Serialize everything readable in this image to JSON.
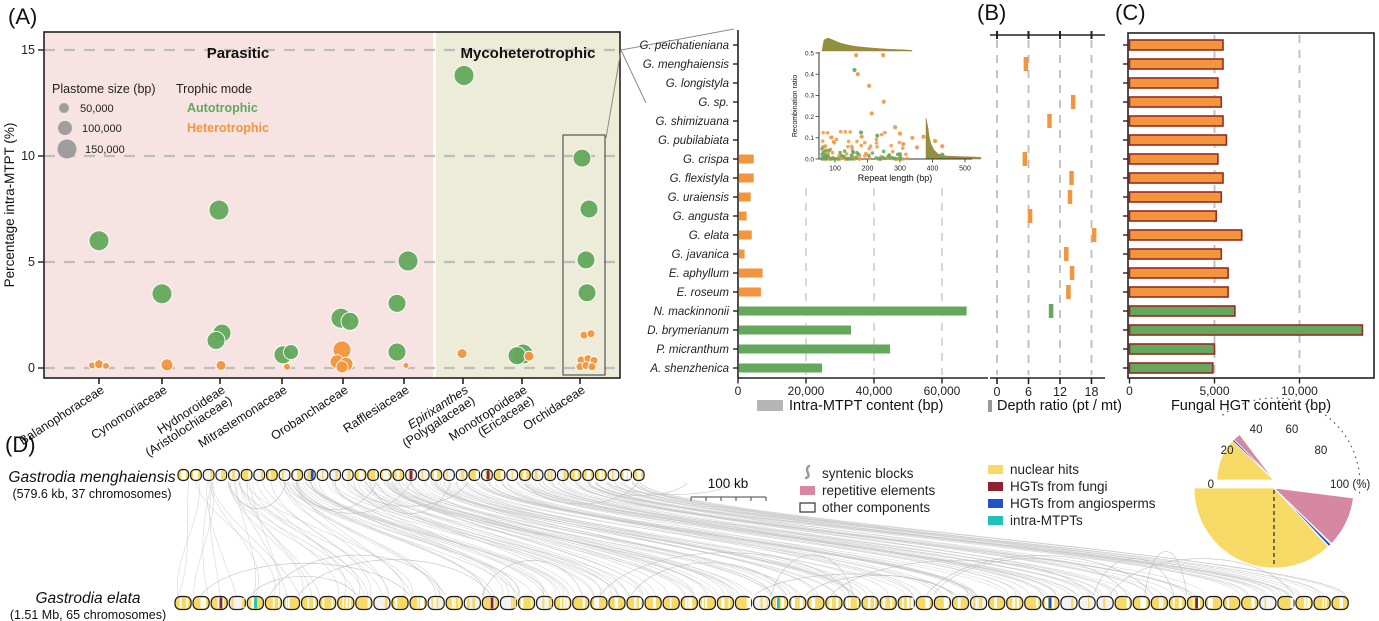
{
  "figure": {
    "panel_labels": {
      "a": "(A)",
      "b": "(B)",
      "c": "(C)",
      "d": "(D)"
    }
  },
  "colors": {
    "autotrophic": "#63a85c",
    "heterotrophic": "#f2953c",
    "parasitic_bg": "#f7e4e2",
    "myco_bg": "#edecd9",
    "grid_gray": "#bdbdbd",
    "bar_green": "#57a14f",
    "bar_orange": "#f2953c",
    "hgt_border": "#9a2a22",
    "legend_gray": "#b5b5b5",
    "pie_yellow": "#f7da66",
    "pie_pink": "#d688a3",
    "pie_blue": "#2253cc",
    "pie_teal": "#1fc3ba",
    "pie_darkred": "#8c2130",
    "chrom_yellow": "#f7da66",
    "synteny_gray": "#c8c8c8",
    "density_olive": "#8e9140"
  },
  "species": [
    "G. peichatieniana",
    "G. menghaiensis",
    "G. longistyla",
    "G. sp.",
    "G. shimizuana",
    "G. pubilabiata",
    "G. crispa",
    "G. flexistyla",
    "G. uraiensis",
    "G. angusta",
    "G. elata",
    "G. javanica",
    "E. aphyllum",
    "E. roseum",
    "N. mackinnonii",
    "D. brymerianum",
    "P. micranthum",
    "A. shenzhenica"
  ],
  "species_trophic": [
    "h",
    "h",
    "h",
    "h",
    "h",
    "h",
    "h",
    "h",
    "h",
    "h",
    "h",
    "h",
    "h",
    "h",
    "a",
    "a",
    "a",
    "a"
  ],
  "chart_data": [
    {
      "id": "intra_mtpt_percentage_scatter",
      "type": "scatter",
      "ylabel": "Percentage intra-MTPT (%)",
      "yticks": [
        0,
        5,
        10,
        15
      ],
      "ylim": [
        0,
        16
      ],
      "grid": true,
      "regions": [
        {
          "label": "Parasitic"
        },
        {
          "label": "Mycoheterotrophic"
        }
      ],
      "legend": {
        "size_title": "Plastome size (bp)",
        "sizes": [
          "50,000",
          "100,000",
          "150,000"
        ],
        "trophic_title": "Trophic mode",
        "trophic": [
          "Autotrophic",
          "Heterotrophic"
        ]
      },
      "categories": [
        {
          "x": 99,
          "lines": [
            "Balanophoraceae"
          ]
        },
        {
          "x": 162,
          "lines": [
            "Cynomoriaceae"
          ]
        },
        {
          "x": 220,
          "lines": [
            "Hydnoroideae",
            "(Aristolochiaceae)"
          ]
        },
        {
          "x": 282,
          "lines": [
            "Mitrastemonaceae"
          ]
        },
        {
          "x": 343,
          "lines": [
            "Orobanchaceae"
          ]
        },
        {
          "x": 404,
          "lines": [
            "Rafflesiaceae"
          ]
        },
        {
          "x": 463,
          "lines": [
            "Epirixanthes",
            "(Polygalaceae)"
          ],
          "italic_first": true
        },
        {
          "x": 522,
          "lines": [
            "Monotropoideae",
            "(Ericaceae)"
          ]
        },
        {
          "x": 580,
          "lines": [
            "Orchidaceae"
          ]
        }
      ],
      "points": [
        {
          "x": 99,
          "pct": 6.0,
          "t": "a",
          "r": 10
        },
        {
          "x": 92,
          "pct": 0.12,
          "t": "h",
          "r": 3.5
        },
        {
          "x": 99,
          "pct": 0.18,
          "t": "h",
          "r": 4.5
        },
        {
          "x": 106,
          "pct": 0.1,
          "t": "h",
          "r": 3.5
        },
        {
          "x": 162,
          "pct": 3.5,
          "t": "a",
          "r": 10
        },
        {
          "x": 167,
          "pct": 0.15,
          "t": "h",
          "r": 6
        },
        {
          "x": 219,
          "pct": 7.45,
          "t": "a",
          "r": 10
        },
        {
          "x": 222,
          "pct": 1.65,
          "t": "a",
          "r": 9
        },
        {
          "x": 216,
          "pct": 1.3,
          "t": "a",
          "r": 9
        },
        {
          "x": 221,
          "pct": 0.12,
          "t": "h",
          "r": 5
        },
        {
          "x": 283,
          "pct": 0.62,
          "t": "a",
          "r": 9
        },
        {
          "x": 291,
          "pct": 0.75,
          "t": "a",
          "r": 7.5
        },
        {
          "x": 287,
          "pct": 0.06,
          "t": "h",
          "r": 3.5
        },
        {
          "x": 341,
          "pct": 2.35,
          "t": "a",
          "r": 10
        },
        {
          "x": 350,
          "pct": 2.2,
          "t": "a",
          "r": 9
        },
        {
          "x": 342,
          "pct": 0.85,
          "t": "h",
          "r": 9
        },
        {
          "x": 337,
          "pct": 0.3,
          "t": "h",
          "r": 7
        },
        {
          "x": 346,
          "pct": 0.18,
          "t": "h",
          "r": 7
        },
        {
          "x": 342,
          "pct": 0.05,
          "t": "h",
          "r": 6
        },
        {
          "x": 408,
          "pct": 5.05,
          "t": "a",
          "r": 10
        },
        {
          "x": 397,
          "pct": 3.05,
          "t": "a",
          "r": 9
        },
        {
          "x": 397,
          "pct": 0.75,
          "t": "a",
          "r": 9
        },
        {
          "x": 406,
          "pct": 0.12,
          "t": "h",
          "r": 3
        },
        {
          "x": 464,
          "pct": 13.8,
          "t": "a",
          "r": 10
        },
        {
          "x": 462,
          "pct": 0.68,
          "t": "h",
          "r": 5
        },
        {
          "x": 523,
          "pct": 0.66,
          "t": "a",
          "r": 10
        },
        {
          "x": 517,
          "pct": 0.58,
          "t": "a",
          "r": 9
        },
        {
          "x": 529,
          "pct": 0.56,
          "t": "h",
          "r": 5
        },
        {
          "x": 582,
          "pct": 9.9,
          "t": "a",
          "r": 9
        },
        {
          "x": 589,
          "pct": 7.5,
          "t": "a",
          "r": 9
        },
        {
          "x": 586,
          "pct": 5.1,
          "t": "a",
          "r": 9
        },
        {
          "x": 587,
          "pct": 3.55,
          "t": "a",
          "r": 9
        },
        {
          "x": 584,
          "pct": 1.55,
          "t": "h",
          "r": 4
        },
        {
          "x": 591,
          "pct": 1.62,
          "t": "h",
          "r": 4
        },
        {
          "x": 581,
          "pct": 0.38,
          "t": "h",
          "r": 4
        },
        {
          "x": 588,
          "pct": 0.44,
          "t": "h",
          "r": 4
        },
        {
          "x": 594,
          "pct": 0.36,
          "t": "h",
          "r": 4
        },
        {
          "x": 580,
          "pct": 0.06,
          "t": "h",
          "r": 4
        },
        {
          "x": 586,
          "pct": 0.12,
          "t": "h",
          "r": 4
        },
        {
          "x": 592,
          "pct": 0.06,
          "t": "h",
          "r": 4
        }
      ]
    },
    {
      "id": "intra_mtpt_content_bars",
      "type": "bar",
      "orientation": "horizontal",
      "xlabel": "Intra-MTPT content (bp)",
      "xticks": [
        0,
        20000,
        40000,
        60000
      ],
      "xtick_labels": [
        "0",
        "20,000",
        "40,000",
        "60,000"
      ],
      "values": [
        0,
        0,
        0,
        0,
        0,
        0,
        4400,
        4400,
        3500,
        2300,
        3800,
        1700,
        7000,
        6500,
        67000,
        33000,
        44500,
        24500
      ]
    },
    {
      "id": "depth_ratio_marks",
      "type": "scatter",
      "xlabel": "Depth ratio (pt / mt)",
      "xticks": [
        0,
        6,
        12,
        18
      ],
      "values": [
        null,
        5.5,
        null,
        14.5,
        10.0,
        null,
        5.3,
        14.2,
        13.9,
        6.3,
        18.5,
        13.2,
        14.3,
        13.6,
        10.3,
        null,
        null,
        null
      ]
    },
    {
      "id": "fungal_hgt_content_bars",
      "type": "bar",
      "orientation": "horizontal",
      "xlabel": "Fungal HGT content (bp)",
      "xticks": [
        0,
        5000,
        10000
      ],
      "xtick_labels": [
        "0",
        "5,000",
        "10,000"
      ],
      "values": [
        5500,
        5500,
        5200,
        5400,
        5500,
        5700,
        5200,
        5500,
        5400,
        5100,
        6600,
        5400,
        5800,
        5800,
        6200,
        13700,
        5000,
        4900
      ]
    },
    {
      "id": "repeat_recombination_inset",
      "type": "scatter",
      "xlabel": "Repeat length (bp)",
      "ylabel": "Recombination ratio",
      "xticks": [
        100,
        200,
        300,
        400,
        500
      ],
      "yticks": [
        "0.0",
        "0.1",
        "0.2",
        "0.3",
        "0.4",
        "0.5"
      ],
      "marginal_densities": true,
      "outliers": {
        "heterotrophic": [
          [
            165,
            0.49
          ],
          [
            248,
            0.49
          ],
          [
            170,
            0.4
          ],
          [
            205,
            0.345
          ],
          [
            250,
            0.27
          ],
          [
            213,
            0.215
          ],
          [
            285,
            0.15
          ],
          [
            300,
            0.12
          ],
          [
            338,
            0.1
          ],
          [
            372,
            0.105
          ],
          [
            408,
            0.085
          ],
          [
            310,
            0.07
          ],
          [
            352,
            0.055
          ],
          [
            430,
            0.06
          ]
        ],
        "autotrophic": [
          [
            160,
            0.42
          ],
          [
            230,
            0.11
          ],
          [
            180,
            0.125
          ],
          [
            430,
            0.02
          ],
          [
            300,
            0.022
          ],
          [
            265,
            0.012
          ]
        ]
      },
      "cluster": {
        "orange_n": 85,
        "green_n": 50,
        "seed": 7
      }
    },
    {
      "id": "genome_composition_fans",
      "type": "pie",
      "unit": "%",
      "tick_labels": [
        "0",
        "20",
        "40",
        "60",
        "80",
        "100 (%)"
      ],
      "series": [
        {
          "name": "G. menghaiensis",
          "segments": [
            {
              "label": "nuclear hits",
              "from": 0,
              "to": 24,
              "color_key": "pie_yellow"
            },
            {
              "label": "HGTs from angiosperms",
              "from": 24,
              "to": 25.2,
              "color_key": "pie_blue"
            },
            {
              "label": "repetitive elements",
              "from": 25.2,
              "to": 29.5,
              "color_key": "pie_pink"
            }
          ]
        },
        {
          "name": "G. elata",
          "segments": [
            {
              "label": "nuclear hits",
              "from": 0,
              "to": 74,
              "color_key": "pie_yellow"
            },
            {
              "label": "HGTs from angiosperms",
              "from": 74,
              "to": 75.6,
              "color_key": "pie_blue"
            },
            {
              "label": "repetitive elements",
              "from": 75.6,
              "to": 96.5,
              "color_key": "pie_pink"
            }
          ]
        }
      ]
    }
  ],
  "panelD": {
    "genomes": [
      {
        "name": "Gastrodia menghaiensis",
        "detail": "(579.6 kb, 37 chromosomes)",
        "chromosomes": 37
      },
      {
        "name": "Gastrodia elata",
        "detail": "(1.51 Mb, 65 chromosomes)",
        "chromosomes": 65
      }
    ],
    "scale_bar": "100 kb",
    "legend_left": [
      {
        "icon": "squiggle",
        "label": "syntenic blocks"
      },
      {
        "icon": "swatch-pink",
        "label": "repetitive elements"
      },
      {
        "icon": "swatch-outline",
        "label": "other components"
      }
    ],
    "legend_right": [
      {
        "color_key": "pie_yellow",
        "label": "nuclear hits"
      },
      {
        "color_key": "pie_darkred",
        "label": "HGTs from fungi"
      },
      {
        "color_key": "pie_blue",
        "label": "HGTs from angiosperms"
      },
      {
        "color_key": "pie_teal",
        "label": "intra-MTPTs"
      }
    ],
    "top_specials": [
      {
        "i": 10,
        "color_key": "pie_blue"
      },
      {
        "i": 18,
        "color_key": "pie_darkred"
      },
      {
        "i": 24,
        "color_key": "pie_darkred"
      }
    ],
    "bottom_specials": [
      {
        "i": 2,
        "color_key": "pie_darkred"
      },
      {
        "i": 4,
        "color_key": "pie_teal"
      },
      {
        "i": 17,
        "color_key": "pie_darkred"
      },
      {
        "i": 33,
        "color_key": "pie_teal"
      },
      {
        "i": 48,
        "color_key": "pie_blue"
      },
      {
        "i": 56,
        "color_key": "pie_darkred"
      }
    ]
  }
}
